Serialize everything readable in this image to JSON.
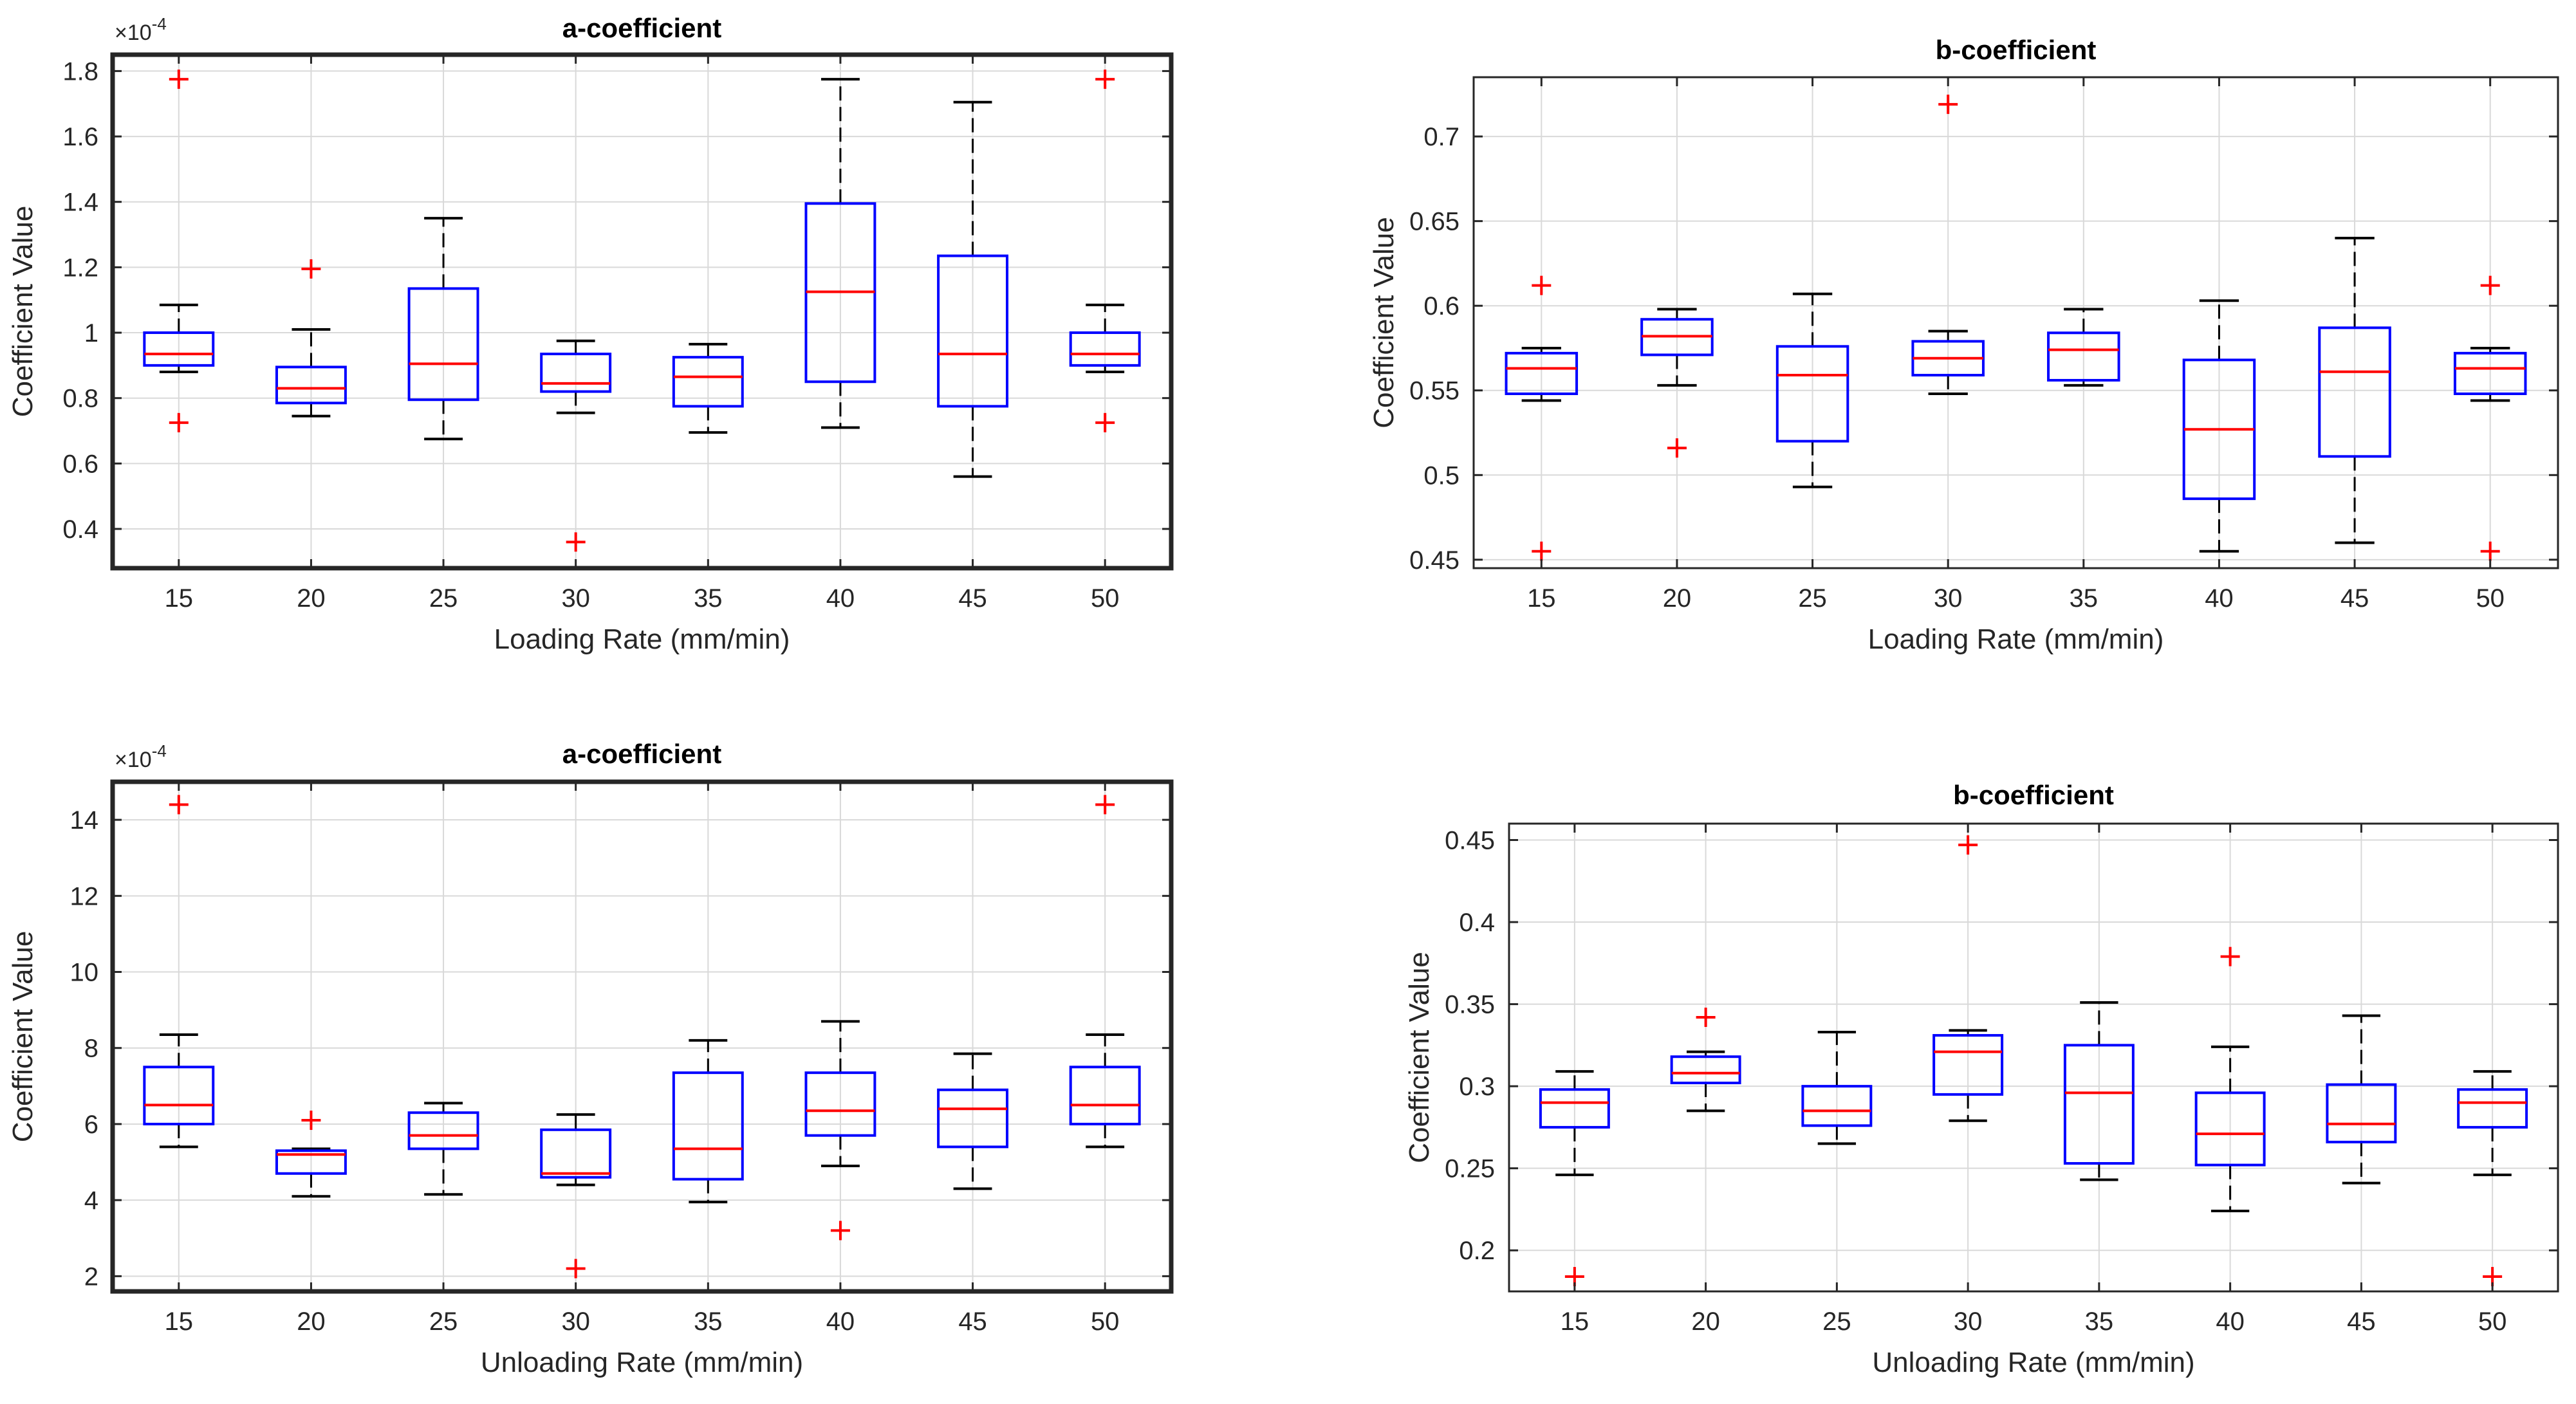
{
  "colors": {
    "box": "#0000ff",
    "median": "#ff0000",
    "whisker": "#000000",
    "outlier": "#ff0000",
    "grid": "#d9d9d9",
    "frame": "#262626"
  },
  "chart_data": [
    {
      "type": "boxplot",
      "title": "a-coefficient",
      "xlabel": "Loading Rate (mm/min)",
      "ylabel": "Coefficient Value",
      "exponent_base": "×10",
      "exponent": "-4",
      "ylim": [
        0.28,
        1.85
      ],
      "yticks": [
        0.4,
        0.6,
        0.8,
        1,
        1.2,
        1.4,
        1.6,
        1.8
      ],
      "ytick_labels": [
        "0.4",
        "0.6",
        "0.8",
        "1",
        "1.2",
        "1.4",
        "1.6",
        "1.8"
      ],
      "categories": [
        "15",
        "20",
        "25",
        "30",
        "35",
        "40",
        "45",
        "50"
      ],
      "boxes": [
        {
          "min": 0.88,
          "q1": 0.9,
          "median": 0.935,
          "q3": 1.0,
          "max": 1.085,
          "outliers": [
            1.775,
            0.725
          ]
        },
        {
          "min": 0.745,
          "q1": 0.785,
          "median": 0.83,
          "q3": 0.895,
          "max": 1.01,
          "outliers": [
            1.195
          ]
        },
        {
          "min": 0.675,
          "q1": 0.795,
          "median": 0.905,
          "q3": 1.135,
          "max": 1.35,
          "outliers": []
        },
        {
          "min": 0.755,
          "q1": 0.82,
          "median": 0.845,
          "q3": 0.935,
          "max": 0.975,
          "outliers": [
            0.36
          ]
        },
        {
          "min": 0.695,
          "q1": 0.775,
          "median": 0.865,
          "q3": 0.925,
          "max": 0.965,
          "outliers": []
        },
        {
          "min": 0.71,
          "q1": 0.85,
          "median": 1.125,
          "q3": 1.395,
          "max": 1.775,
          "outliers": []
        },
        {
          "min": 0.56,
          "q1": 0.775,
          "median": 0.935,
          "q3": 1.235,
          "max": 1.705,
          "outliers": []
        },
        {
          "min": 0.88,
          "q1": 0.9,
          "median": 0.935,
          "q3": 1.0,
          "max": 1.085,
          "outliers": [
            1.775,
            0.725
          ]
        }
      ]
    },
    {
      "type": "boxplot",
      "title": "b-coefficient",
      "xlabel": "Loading Rate (mm/min)",
      "ylabel": "Coefficient Value",
      "ylim": [
        0.445,
        0.735
      ],
      "yticks": [
        0.45,
        0.5,
        0.55,
        0.6,
        0.65,
        0.7
      ],
      "ytick_labels": [
        "0.45",
        "0.5",
        "0.55",
        "0.6",
        "0.65",
        "0.7"
      ],
      "categories": [
        "15",
        "20",
        "25",
        "30",
        "35",
        "40",
        "45",
        "50"
      ],
      "boxes": [
        {
          "min": 0.544,
          "q1": 0.548,
          "median": 0.563,
          "q3": 0.572,
          "max": 0.575,
          "outliers": [
            0.612,
            0.455
          ]
        },
        {
          "min": 0.553,
          "q1": 0.571,
          "median": 0.582,
          "q3": 0.592,
          "max": 0.598,
          "outliers": [
            0.516
          ]
        },
        {
          "min": 0.493,
          "q1": 0.52,
          "median": 0.559,
          "q3": 0.576,
          "max": 0.607,
          "outliers": []
        },
        {
          "min": 0.548,
          "q1": 0.559,
          "median": 0.569,
          "q3": 0.579,
          "max": 0.585,
          "outliers": [
            0.719
          ]
        },
        {
          "min": 0.553,
          "q1": 0.556,
          "median": 0.574,
          "q3": 0.584,
          "max": 0.598,
          "outliers": []
        },
        {
          "min": 0.455,
          "q1": 0.486,
          "median": 0.527,
          "q3": 0.568,
          "max": 0.603,
          "outliers": []
        },
        {
          "min": 0.46,
          "q1": 0.511,
          "median": 0.561,
          "q3": 0.587,
          "max": 0.64,
          "outliers": []
        },
        {
          "min": 0.544,
          "q1": 0.548,
          "median": 0.563,
          "q3": 0.572,
          "max": 0.575,
          "outliers": [
            0.612,
            0.455
          ]
        }
      ]
    },
    {
      "type": "boxplot",
      "title": "a-coefficient",
      "xlabel": "Unloading Rate (mm/min)",
      "ylabel": "Coefficient Value",
      "exponent_base": "×10",
      "exponent": "-4",
      "ylim": [
        1.6,
        15.0
      ],
      "yticks": [
        2,
        4,
        6,
        8,
        10,
        12,
        14
      ],
      "ytick_labels": [
        "2",
        "4",
        "6",
        "8",
        "10",
        "12",
        "14"
      ],
      "categories": [
        "15",
        "20",
        "25",
        "30",
        "35",
        "40",
        "45",
        "50"
      ],
      "boxes": [
        {
          "min": 5.4,
          "q1": 6.0,
          "median": 6.5,
          "q3": 7.5,
          "max": 8.35,
          "outliers": [
            14.4
          ]
        },
        {
          "min": 4.1,
          "q1": 4.7,
          "median": 5.2,
          "q3": 5.3,
          "max": 5.35,
          "outliers": [
            6.1
          ]
        },
        {
          "min": 4.15,
          "q1": 5.35,
          "median": 5.7,
          "q3": 6.3,
          "max": 6.55,
          "outliers": []
        },
        {
          "min": 4.4,
          "q1": 4.6,
          "median": 4.7,
          "q3": 5.85,
          "max": 6.25,
          "outliers": [
            2.2
          ]
        },
        {
          "min": 3.95,
          "q1": 4.55,
          "median": 5.35,
          "q3": 7.35,
          "max": 8.2,
          "outliers": []
        },
        {
          "min": 4.9,
          "q1": 5.7,
          "median": 6.35,
          "q3": 7.35,
          "max": 8.7,
          "outliers": [
            3.2
          ]
        },
        {
          "min": 4.3,
          "q1": 5.4,
          "median": 6.4,
          "q3": 6.9,
          "max": 7.85,
          "outliers": []
        },
        {
          "min": 5.4,
          "q1": 6.0,
          "median": 6.5,
          "q3": 7.5,
          "max": 8.35,
          "outliers": [
            14.4
          ]
        }
      ]
    },
    {
      "type": "boxplot",
      "title": "b-coefficient",
      "xlabel": "Unloading Rate (mm/min)",
      "ylabel": "Coefficient Value",
      "ylim": [
        0.175,
        0.46
      ],
      "yticks": [
        0.2,
        0.25,
        0.3,
        0.35,
        0.4,
        0.45
      ],
      "ytick_labels": [
        "0.2",
        "0.25",
        "0.3",
        "0.35",
        "0.4",
        "0.45"
      ],
      "categories": [
        "15",
        "20",
        "25",
        "30",
        "35",
        "40",
        "45",
        "50"
      ],
      "boxes": [
        {
          "min": 0.246,
          "q1": 0.275,
          "median": 0.29,
          "q3": 0.298,
          "max": 0.309,
          "outliers": [
            0.184
          ]
        },
        {
          "min": 0.285,
          "q1": 0.302,
          "median": 0.308,
          "q3": 0.318,
          "max": 0.321,
          "outliers": [
            0.342
          ]
        },
        {
          "min": 0.265,
          "q1": 0.276,
          "median": 0.285,
          "q3": 0.3,
          "max": 0.333,
          "outliers": []
        },
        {
          "min": 0.279,
          "q1": 0.295,
          "median": 0.321,
          "q3": 0.331,
          "max": 0.334,
          "outliers": [
            0.447
          ]
        },
        {
          "min": 0.243,
          "q1": 0.253,
          "median": 0.296,
          "q3": 0.325,
          "max": 0.351,
          "outliers": []
        },
        {
          "min": 0.224,
          "q1": 0.252,
          "median": 0.271,
          "q3": 0.296,
          "max": 0.324,
          "outliers": [
            0.379
          ]
        },
        {
          "min": 0.241,
          "q1": 0.266,
          "median": 0.277,
          "q3": 0.301,
          "max": 0.343,
          "outliers": []
        },
        {
          "min": 0.246,
          "q1": 0.275,
          "median": 0.29,
          "q3": 0.298,
          "max": 0.309,
          "outliers": [
            0.184
          ]
        }
      ]
    }
  ]
}
